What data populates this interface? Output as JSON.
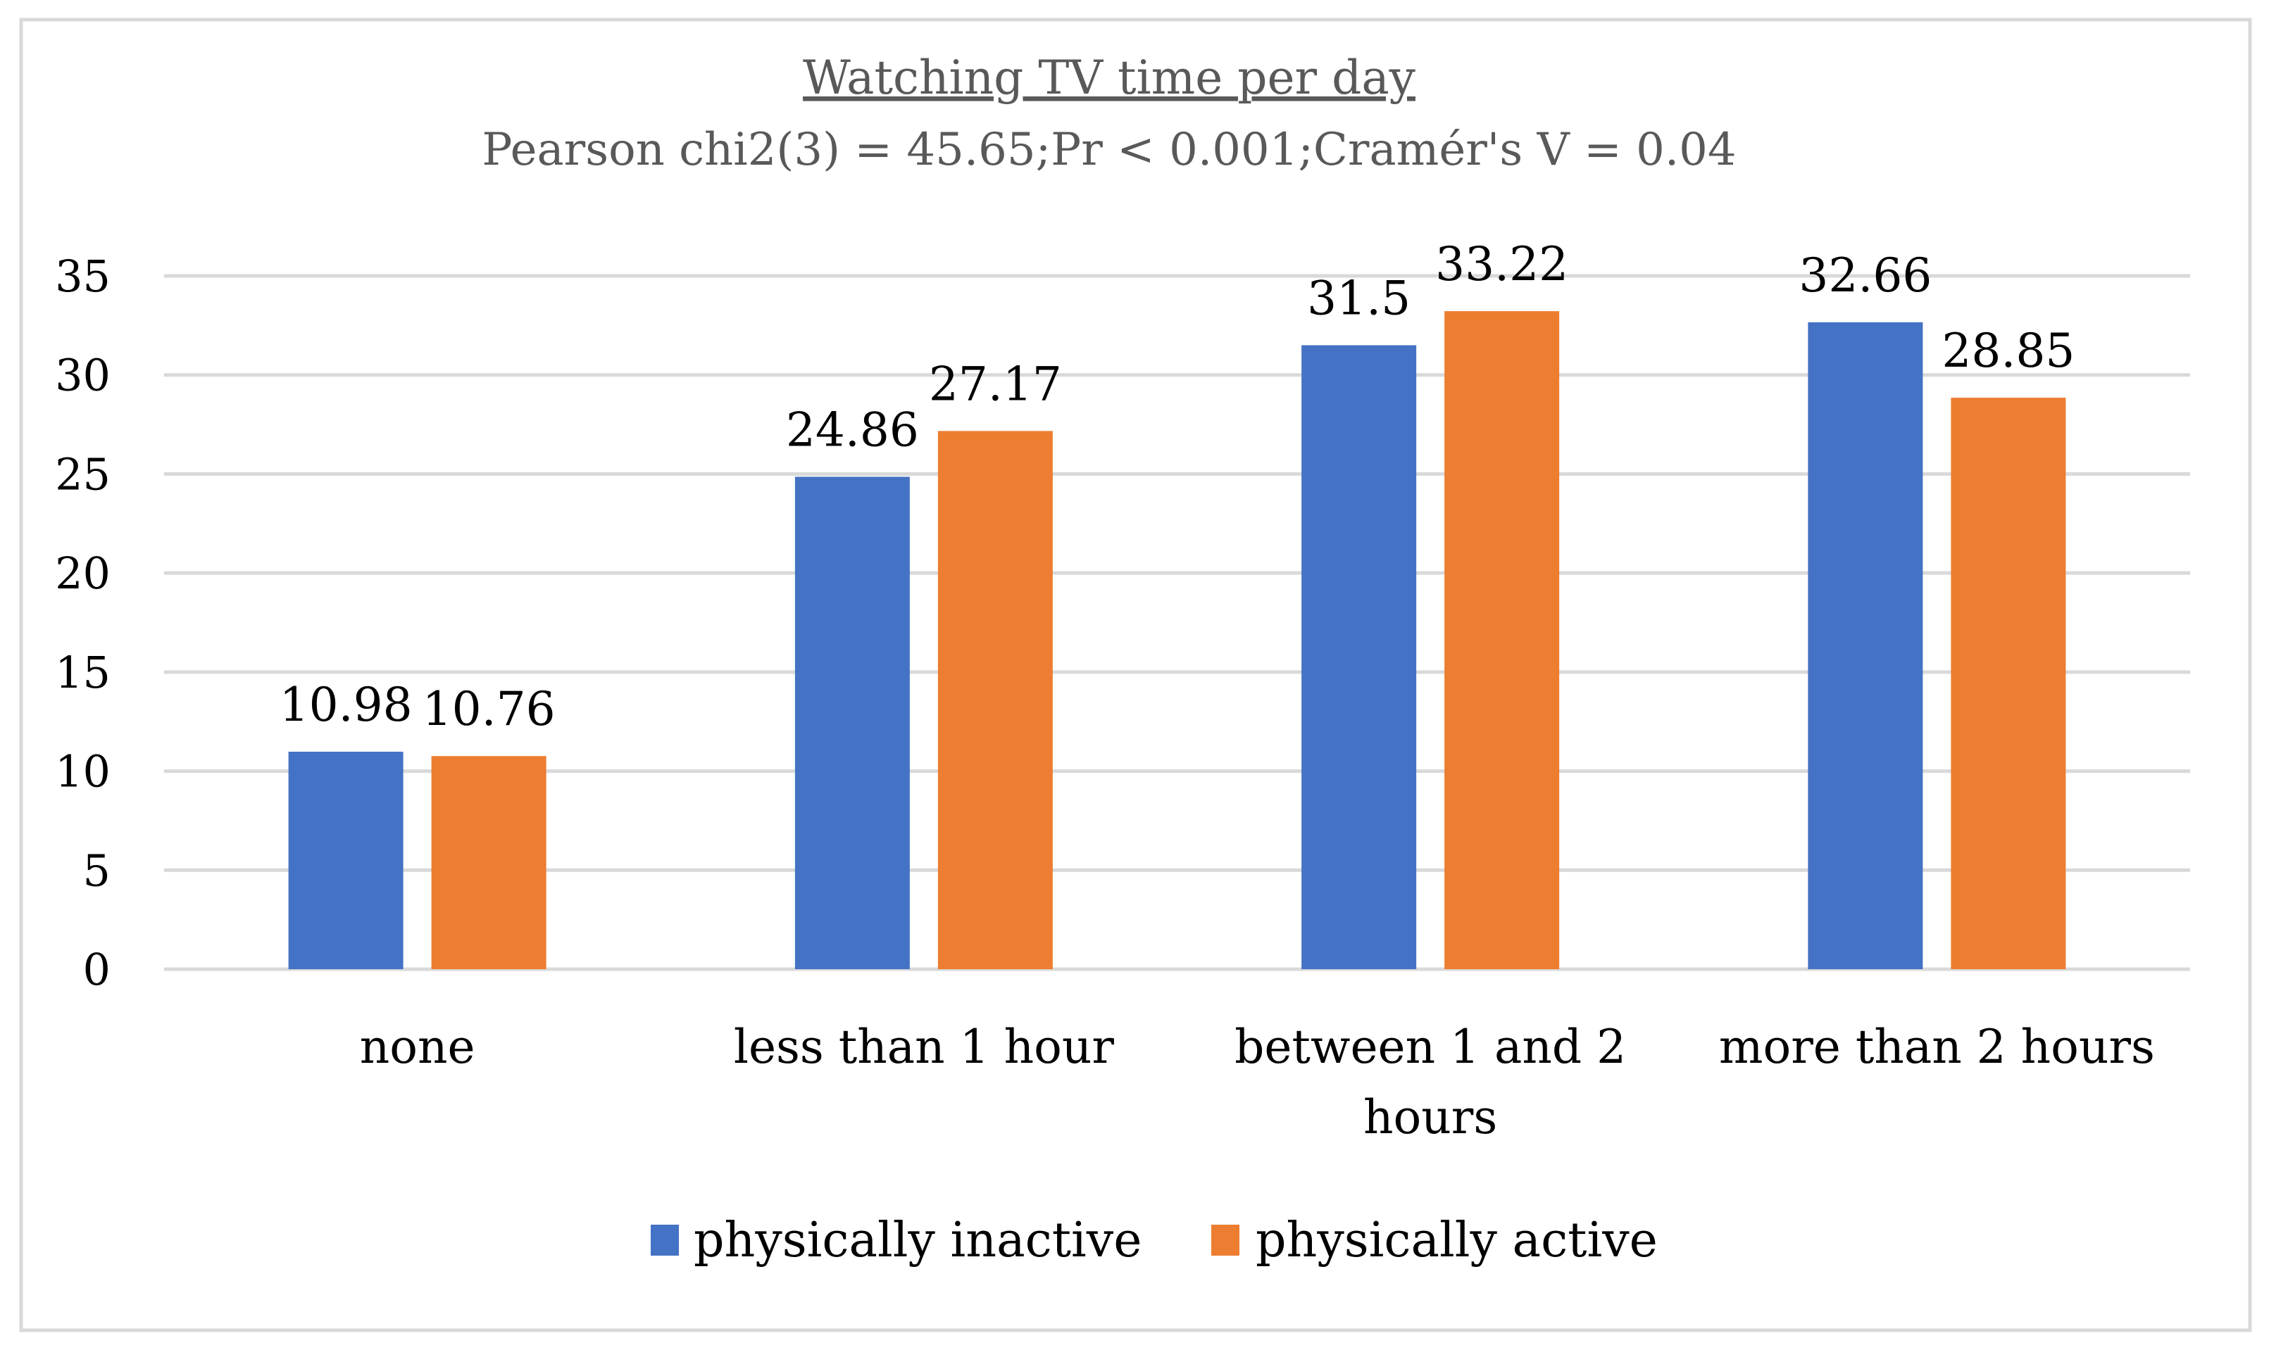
{
  "chart_data": {
    "type": "bar",
    "title": "Watching TV time per day",
    "subtitle": "Pearson chi2(3) = 45.65;Pr < 0.001;Cramér's V = 0.04",
    "categories": [
      "none",
      "less than 1 hour",
      "between 1 and 2 hours",
      "more than 2 hours"
    ],
    "category_lines": [
      [
        "none"
      ],
      [
        "less than 1 hour"
      ],
      [
        "between 1 and 2",
        "hours"
      ],
      [
        "more than 2 hours"
      ]
    ],
    "series": [
      {
        "name": "physically inactive",
        "values": [
          10.98,
          24.86,
          31.5,
          32.66
        ],
        "labels": [
          "10.98",
          "24.86",
          "31.5",
          "32.66"
        ],
        "color": "#4472c4"
      },
      {
        "name": "physically active",
        "values": [
          10.76,
          27.17,
          33.22,
          28.85
        ],
        "labels": [
          "10.76",
          "27.17",
          "33.22",
          "28.85"
        ],
        "color": "#ed7d31"
      }
    ],
    "yticks": [
      "0",
      "5",
      "10",
      "15",
      "20",
      "25",
      "30",
      "35"
    ],
    "ylim": [
      0,
      35
    ],
    "xlabel": "",
    "ylabel": "",
    "grid": true,
    "legend_position": "bottom"
  },
  "colors": {
    "gridline": "#d9d9d9",
    "border": "#d9d9d9",
    "title": "#595959"
  }
}
